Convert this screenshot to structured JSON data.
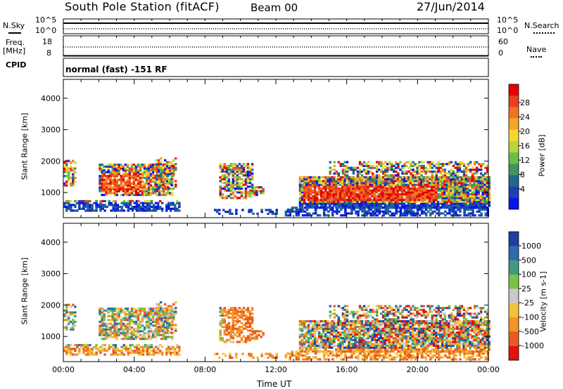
{
  "header": {
    "station": "South Pole Station (fitACF)",
    "beam": "Beam 00",
    "date": "27/Jun/2014"
  },
  "top_strip": {
    "left_label": "N.Sky",
    "right_label": "N.Search",
    "left_ticks": [
      "10^5",
      "10^0"
    ],
    "right_ticks": [
      "10^5",
      "10^0"
    ]
  },
  "freq_strip": {
    "left_label_1": "Freq.",
    "left_label_2": "[MHz]",
    "left_ticks": [
      "18",
      "8"
    ],
    "right_label": "Nave",
    "right_ticks": [
      "60",
      "0"
    ]
  },
  "cpid_strip": {
    "label": "CPID",
    "text": "normal (fast) -151 RF"
  },
  "chart_data": [
    {
      "type": "heatmap",
      "quantity": "power",
      "ylabel": "Slant Range [km]",
      "yticks": [
        "1000",
        "2000",
        "3000",
        "4000"
      ],
      "ylim": [
        200,
        4600
      ],
      "colorbar": {
        "label": "Power [dB]",
        "ticks": [
          "4",
          "8",
          "12",
          "16",
          "20",
          "24",
          "28"
        ],
        "colors": [
          "#0a14ee",
          "#1e41b0",
          "#1f6a8c",
          "#3f9462",
          "#6abf4b",
          "#b8d63a",
          "#f6d631",
          "#f3a623",
          "#ef7426",
          "#ea3f21",
          "#e20000"
        ]
      }
    },
    {
      "type": "heatmap",
      "quantity": "velocity",
      "ylabel": "Slant Range [km]",
      "yticks": [
        "1000",
        "2000",
        "3000",
        "4000"
      ],
      "ylim": [
        200,
        4600
      ],
      "xlabel": "Time UT",
      "xticks": [
        "00:00",
        "04:00",
        "08:00",
        "12:00",
        "16:00",
        "20:00",
        "00:00"
      ],
      "colorbar": {
        "label": "Velocity [m s-1]",
        "ticks": [
          "1000",
          "500",
          "100",
          "25",
          "-25",
          "-100",
          "-500",
          "-1000"
        ],
        "colors": [
          "#1e3fa3",
          "#2e6bab",
          "#3f9a7e",
          "#7bc244",
          "#c9c9c9",
          "#f2c23a",
          "#f2932a",
          "#ea5a20",
          "#e01212"
        ]
      }
    }
  ]
}
